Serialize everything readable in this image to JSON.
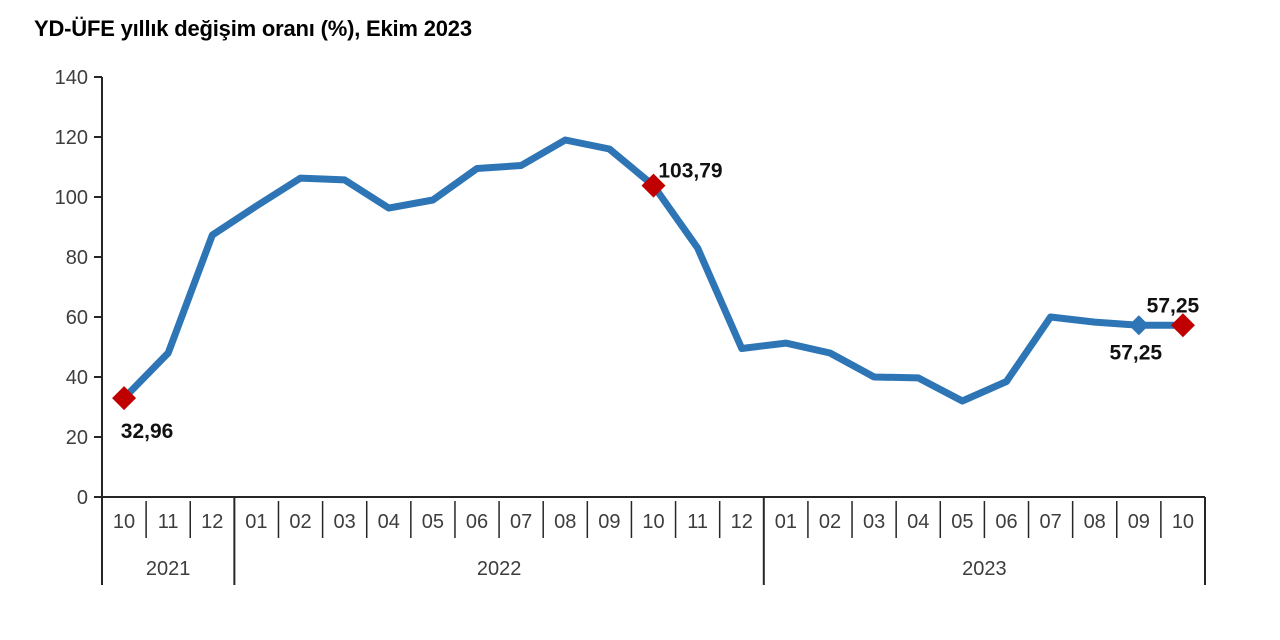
{
  "title": "YD-ÜFE yıllık değişim oranı (%), Ekim 2023",
  "colors": {
    "line": "#2E75B6",
    "marker_red": "#C00000",
    "marker_blue": "#2E75B6",
    "axis": "#262626",
    "axis_text": "#3D3D3D",
    "point_label_text": "#111111",
    "background": "#FFFFFF"
  },
  "chart_data": {
    "type": "line",
    "title": "YD-ÜFE yıllık değişim oranı (%), Ekim 2023",
    "xlabel": "",
    "ylabel": "",
    "ylim": [
      0,
      140
    ],
    "yticks": [
      0,
      20,
      40,
      60,
      80,
      100,
      120,
      140
    ],
    "grid": false,
    "legend_position": "none",
    "x": [
      "10",
      "11",
      "12",
      "01",
      "02",
      "03",
      "04",
      "05",
      "06",
      "07",
      "08",
      "09",
      "10",
      "11",
      "12",
      "01",
      "02",
      "03",
      "04",
      "05",
      "06",
      "07",
      "08",
      "09",
      "10"
    ],
    "year_groups": [
      {
        "label": "2021",
        "months": 3
      },
      {
        "label": "2022",
        "months": 12
      },
      {
        "label": "2023",
        "months": 10
      }
    ],
    "series": [
      {
        "name": "YD-ÜFE yıllık değişim oranı (%)",
        "values": [
          32.96,
          48.0,
          87.3,
          97.0,
          106.3,
          105.7,
          96.3,
          99.0,
          109.5,
          110.5,
          119.0,
          116.0,
          103.79,
          83.0,
          49.5,
          51.3,
          48.0,
          40.0,
          39.7,
          32.0,
          38.5,
          60.0,
          58.3,
          57.25,
          57.25
        ]
      }
    ],
    "markers": [
      {
        "index": 0,
        "month": "10.2021",
        "value": 32.96,
        "label": "32,96",
        "shape": "diamond",
        "color": "#C00000",
        "label_position": "below-right"
      },
      {
        "index": 12,
        "month": "10.2022",
        "value": 103.79,
        "label": "103,79",
        "shape": "diamond",
        "color": "#C00000",
        "label_position": "above-right"
      },
      {
        "index": 23,
        "month": "09.2023",
        "value": 57.25,
        "label": "57,25",
        "shape": "diamond",
        "color": "#2E75B6",
        "label_position": "below"
      },
      {
        "index": 24,
        "month": "10.2023",
        "value": 57.25,
        "label": "57,25",
        "shape": "diamond",
        "color": "#C00000",
        "label_position": "above"
      }
    ]
  }
}
